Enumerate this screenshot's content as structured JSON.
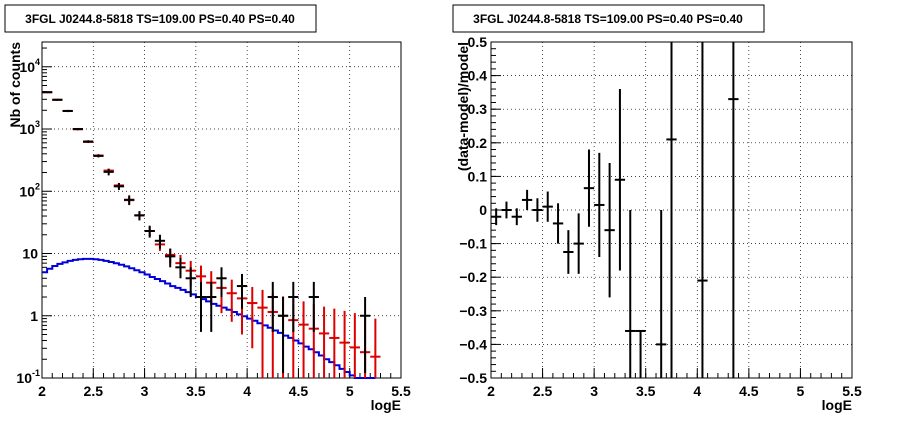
{
  "chart_data": [
    {
      "type": "histogram",
      "title": "3FGL J0244.8-5818 TS=109.00 PS=0.40 PS=0.40",
      "xlabel": "logE",
      "ylabel": "Nb of counts",
      "xlim": [
        2,
        5.5
      ],
      "ylim": [
        0.1,
        25000
      ],
      "yscale": "log",
      "grid": true,
      "x_ticks": [
        "2",
        "2.5",
        "3",
        "3.5",
        "4",
        "4.5",
        "5",
        "5.5"
      ],
      "y_ticks": [
        {
          "value": 0.1,
          "base": "10",
          "exp": "-1"
        },
        {
          "value": 1,
          "base": "1",
          "exp": ""
        },
        {
          "value": 10,
          "base": "10",
          "exp": ""
        },
        {
          "value": 100,
          "base": "10",
          "exp": "2"
        },
        {
          "value": 1000,
          "base": "10",
          "exp": "3"
        },
        {
          "value": 10000,
          "base": "10",
          "exp": "4"
        }
      ],
      "bin_width": 0.1,
      "series": [
        {
          "color": "#000000",
          "style": "data-errorbars",
          "points": [
            {
              "x": 2.05,
              "y": 3900,
              "lo": 3780,
              "hi": 4020
            },
            {
              "x": 2.15,
              "y": 2950,
              "lo": 2850,
              "hi": 3050
            },
            {
              "x": 2.25,
              "y": 1950,
              "lo": 1870,
              "hi": 2030
            },
            {
              "x": 2.35,
              "y": 1000,
              "lo": 960,
              "hi": 1040
            },
            {
              "x": 2.45,
              "y": 630,
              "lo": 600,
              "hi": 660
            },
            {
              "x": 2.55,
              "y": 370,
              "lo": 350,
              "hi": 390
            },
            {
              "x": 2.65,
              "y": 205,
              "lo": 180,
              "hi": 230
            },
            {
              "x": 2.75,
              "y": 120,
              "lo": 105,
              "hi": 135
            },
            {
              "x": 2.85,
              "y": 73,
              "lo": 60,
              "hi": 86
            },
            {
              "x": 2.95,
              "y": 41,
              "lo": 34,
              "hi": 48
            },
            {
              "x": 3.05,
              "y": 23,
              "lo": 18,
              "hi": 28
            },
            {
              "x": 3.15,
              "y": 16,
              "lo": 12,
              "hi": 20
            },
            {
              "x": 3.25,
              "y": 9,
              "lo": 6,
              "hi": 12
            },
            {
              "x": 3.35,
              "y": 6,
              "lo": 4,
              "hi": 8.5
            },
            {
              "x": 3.45,
              "y": 4,
              "lo": 2,
              "hi": 6
            },
            {
              "x": 3.55,
              "y": 2,
              "lo": 0.55,
              "hi": 3.5
            },
            {
              "x": 3.65,
              "y": 2,
              "lo": 0.55,
              "hi": 3.5
            },
            {
              "x": 3.75,
              "y": 4,
              "lo": 2,
              "hi": 6
            },
            {
              "x": 3.95,
              "y": 3,
              "lo": 1.3,
              "hi": 4.7
            },
            {
              "x": 4.25,
              "y": 2,
              "lo": 0.55,
              "hi": 3.5
            },
            {
              "x": 4.35,
              "y": 1,
              "lo": 0.12,
              "hi": 2
            },
            {
              "x": 4.45,
              "y": 2,
              "lo": 0.55,
              "hi": 3.5
            },
            {
              "x": 4.65,
              "y": 2,
              "lo": 0.55,
              "hi": 3.5
            },
            {
              "x": 5.15,
              "y": 1,
              "lo": 0.12,
              "hi": 2
            }
          ]
        },
        {
          "color": "#dd0000",
          "style": "model-errorbars",
          "points": [
            {
              "x": 2.05,
              "y": 3900,
              "lo": 3800,
              "hi": 4000
            },
            {
              "x": 2.15,
              "y": 2950,
              "lo": 2870,
              "hi": 3030
            },
            {
              "x": 2.25,
              "y": 1950,
              "lo": 1890,
              "hi": 2010
            },
            {
              "x": 2.35,
              "y": 990,
              "lo": 955,
              "hi": 1025
            },
            {
              "x": 2.45,
              "y": 620,
              "lo": 595,
              "hi": 645
            },
            {
              "x": 2.55,
              "y": 375,
              "lo": 355,
              "hi": 395
            },
            {
              "x": 2.65,
              "y": 215,
              "lo": 200,
              "hi": 230
            },
            {
              "x": 2.75,
              "y": 124,
              "lo": 112,
              "hi": 136
            },
            {
              "x": 2.85,
              "y": 72,
              "lo": 64,
              "hi": 80
            },
            {
              "x": 2.95,
              "y": 41,
              "lo": 35,
              "hi": 47
            },
            {
              "x": 3.05,
              "y": 23,
              "lo": 19,
              "hi": 27
            },
            {
              "x": 3.15,
              "y": 14,
              "lo": 11,
              "hi": 17
            },
            {
              "x": 3.25,
              "y": 9.5,
              "lo": 7,
              "hi": 12
            },
            {
              "x": 3.35,
              "y": 7,
              "lo": 4.5,
              "hi": 9.5
            },
            {
              "x": 3.45,
              "y": 5.3,
              "lo": 3,
              "hi": 7.6
            },
            {
              "x": 3.55,
              "y": 4.3,
              "lo": 2.2,
              "hi": 6.4
            },
            {
              "x": 3.65,
              "y": 3.4,
              "lo": 1.6,
              "hi": 5.2
            },
            {
              "x": 3.75,
              "y": 2.8,
              "lo": 1.1,
              "hi": 4.5
            },
            {
              "x": 3.85,
              "y": 2.3,
              "lo": 0.8,
              "hi": 3.8
            },
            {
              "x": 3.95,
              "y": 1.9,
              "lo": 0.5,
              "hi": 3.3
            },
            {
              "x": 4.05,
              "y": 1.6,
              "lo": 0.3,
              "hi": 2.9
            },
            {
              "x": 4.15,
              "y": 1.35,
              "lo": 0.1,
              "hi": 2.6
            },
            {
              "x": 4.25,
              "y": 1.15,
              "lo": 0.1,
              "hi": 2.3
            },
            {
              "x": 4.35,
              "y": 1.0,
              "lo": 0.1,
              "hi": 2.05
            },
            {
              "x": 4.45,
              "y": 0.85,
              "lo": 0.1,
              "hi": 1.85
            },
            {
              "x": 4.55,
              "y": 0.72,
              "lo": 0.1,
              "hi": 1.7
            },
            {
              "x": 4.65,
              "y": 0.62,
              "lo": 0.1,
              "hi": 1.55
            },
            {
              "x": 4.75,
              "y": 0.52,
              "lo": 0.1,
              "hi": 1.4
            },
            {
              "x": 4.85,
              "y": 0.44,
              "lo": 0.1,
              "hi": 1.3
            },
            {
              "x": 4.95,
              "y": 0.37,
              "lo": 0.1,
              "hi": 1.2
            },
            {
              "x": 5.05,
              "y": 0.31,
              "lo": 0.1,
              "hi": 1.1
            },
            {
              "x": 5.15,
              "y": 0.26,
              "lo": 0.1,
              "hi": 1.0
            },
            {
              "x": 5.25,
              "y": 0.22,
              "lo": 0.1,
              "hi": 0.9
            }
          ]
        },
        {
          "color": "#0000dd",
          "style": "step",
          "edges": [
            2.0,
            2.05,
            2.1,
            2.15,
            2.2,
            2.25,
            2.3,
            2.35,
            2.4,
            2.45,
            2.5,
            2.55,
            2.6,
            2.65,
            2.7,
            2.75,
            2.8,
            2.85,
            2.9,
            2.95,
            3.0,
            3.05,
            3.1,
            3.15,
            3.2,
            3.25,
            3.3,
            3.35,
            3.4,
            3.45,
            3.5,
            3.55,
            3.6,
            3.65,
            3.7,
            3.75,
            3.8,
            3.85,
            3.9,
            3.95,
            4.0,
            4.05,
            4.1,
            4.15,
            4.2,
            4.25,
            4.3,
            4.35,
            4.4,
            4.45,
            4.5,
            4.55,
            4.6,
            4.65,
            4.7,
            4.75,
            4.8,
            4.85,
            4.9,
            4.95,
            5.0,
            5.05,
            5.1,
            5.15,
            5.2,
            5.25
          ],
          "values": [
            5.0,
            5.7,
            6.3,
            6.8,
            7.2,
            7.6,
            7.9,
            8.1,
            8.2,
            8.2,
            8.1,
            7.9,
            7.6,
            7.3,
            7.0,
            6.6,
            6.2,
            5.8,
            5.4,
            5.0,
            4.6,
            4.2,
            3.9,
            3.6,
            3.3,
            3.0,
            2.8,
            2.6,
            2.4,
            2.2,
            2.0,
            1.85,
            1.7,
            1.55,
            1.45,
            1.35,
            1.25,
            1.15,
            1.05,
            0.98,
            0.9,
            0.83,
            0.76,
            0.7,
            0.64,
            0.58,
            0.53,
            0.48,
            0.44,
            0.4,
            0.36,
            0.32,
            0.29,
            0.26,
            0.23,
            0.2,
            0.18,
            0.16,
            0.14,
            0.125,
            0.11,
            0.1,
            0.1,
            0.1,
            0.1
          ]
        }
      ]
    },
    {
      "type": "scatter",
      "title": "3FGL J0244.8-5818 TS=109.00 PS=0.40 PS=0.40",
      "xlabel": "logE",
      "ylabel": "(data-model)/model",
      "xlim": [
        2,
        5.5
      ],
      "ylim": [
        -0.5,
        0.5
      ],
      "grid": true,
      "x_ticks": [
        "2",
        "2.5",
        "3",
        "3.5",
        "4",
        "4.5",
        "5",
        "5.5"
      ],
      "y_ticks": [
        "−0.5",
        "−0.4",
        "−0.3",
        "−0.2",
        "−0.1",
        "0",
        "0.1",
        "0.2",
        "0.3",
        "0.4",
        "0.5"
      ],
      "y_tick_values": [
        -0.5,
        -0.4,
        -0.3,
        -0.2,
        -0.1,
        0,
        0.1,
        0.2,
        0.3,
        0.4,
        0.5
      ],
      "bin_width": 0.1,
      "points": [
        {
          "x": 2.05,
          "y": -0.02,
          "lo": -0.045,
          "hi": 0.005
        },
        {
          "x": 2.15,
          "y": 0.0,
          "lo": -0.025,
          "hi": 0.025
        },
        {
          "x": 2.25,
          "y": -0.02,
          "lo": -0.045,
          "hi": 0.005
        },
        {
          "x": 2.35,
          "y": 0.03,
          "lo": 0.0,
          "hi": 0.06
        },
        {
          "x": 2.45,
          "y": 0.0,
          "lo": -0.035,
          "hi": 0.035
        },
        {
          "x": 2.55,
          "y": 0.01,
          "lo": -0.035,
          "hi": 0.055
        },
        {
          "x": 2.65,
          "y": -0.04,
          "lo": -0.1,
          "hi": 0.02
        },
        {
          "x": 2.75,
          "y": -0.125,
          "lo": -0.19,
          "hi": -0.06
        },
        {
          "x": 2.85,
          "y": -0.1,
          "lo": -0.19,
          "hi": -0.01
        },
        {
          "x": 2.95,
          "y": 0.065,
          "lo": -0.05,
          "hi": 0.18
        },
        {
          "x": 3.05,
          "y": 0.015,
          "lo": -0.14,
          "hi": 0.17
        },
        {
          "x": 3.15,
          "y": -0.06,
          "lo": -0.26,
          "hi": 0.14
        },
        {
          "x": 3.25,
          "y": 0.09,
          "lo": -0.18,
          "hi": 0.36
        },
        {
          "x": 3.35,
          "y": -0.36,
          "lo": -0.5,
          "hi": 0.0
        },
        {
          "x": 3.45,
          "y": -0.36,
          "lo": -0.5,
          "hi": -0.36
        },
        {
          "x": 3.65,
          "y": -0.4,
          "lo": -0.5,
          "hi": 0.0
        },
        {
          "x": 3.75,
          "y": 0.21,
          "lo": -0.5,
          "hi": 0.5
        },
        {
          "x": 4.05,
          "y": -0.21,
          "lo": -0.5,
          "hi": 0.5
        },
        {
          "x": 4.35,
          "y": 0.33,
          "lo": -0.5,
          "hi": 0.5
        }
      ]
    }
  ]
}
